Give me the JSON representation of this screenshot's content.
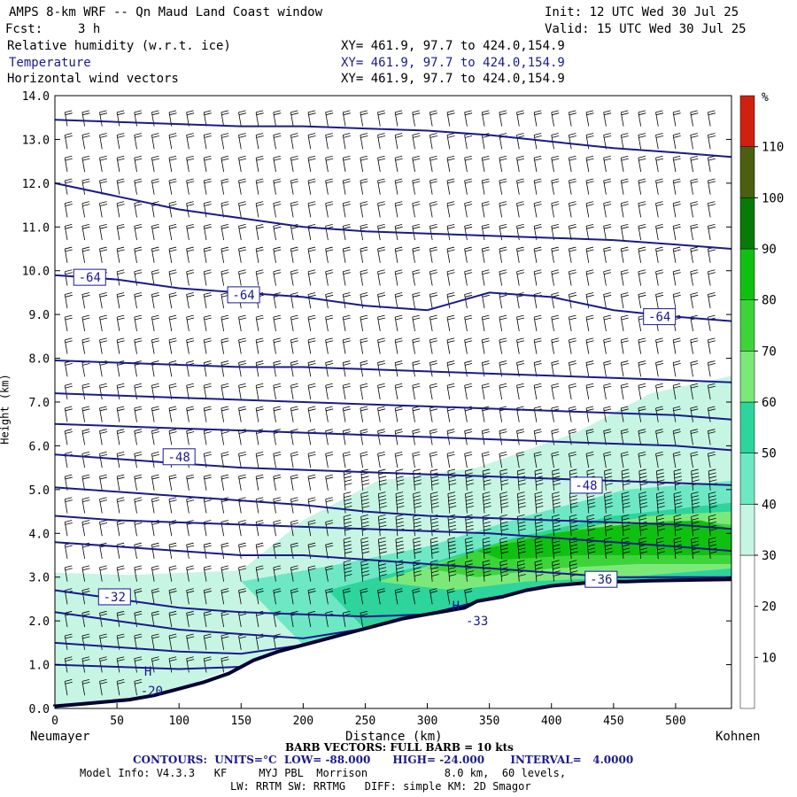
{
  "header": {
    "title": "AMPS 8-km WRF -- Qn Maud Land Coast window",
    "init": "Init: 12 UTC Wed 30 Jul 25",
    "fcst_label": "Fcst:",
    "fcst_value": "3 h",
    "valid": "Valid: 15 UTC Wed 30 Jul 25",
    "fields": [
      {
        "name": "Relative humidity (w.r.t. ice)",
        "xy": "XY= 461.9, 97.7 to 424.0,154.9",
        "color": "#000000"
      },
      {
        "name": "Temperature",
        "xy": "XY= 461.9, 97.7 to 424.0,154.9",
        "color": "#1a1a8c"
      },
      {
        "name": "Horizontal wind vectors",
        "xy": "XY= 461.9, 97.7 to 424.0,154.9",
        "color": "#000000"
      }
    ]
  },
  "footer": {
    "barb": "BARB VECTORS: FULL BARB = 10 kts",
    "contours": "CONTOURS:  UNITS=°C  LOW= -88.000      HIGH= -24.000       INTERVAL=   4.0000",
    "model_info": "Model Info: V4.3.3   KF     MYJ PBL  Morrison            8.0 km,  60 levels,",
    "model_info2": "LW: RRTM SW: RRTMG   DIFF: simple KM: 2D Smagor"
  },
  "colors": {
    "temp_contour": "#1a1a8c",
    "terrain": "#000033",
    "barb": "#000000"
  },
  "chart_data": {
    "type": "heatmap",
    "xlabel": "Distance (km)",
    "ylabel": "Height (km)",
    "xlim": [
      0,
      545
    ],
    "ylim": [
      0,
      14
    ],
    "xticks": [
      "0",
      "50",
      "100",
      "150",
      "200",
      "250",
      "300",
      "350",
      "400",
      "450",
      "500"
    ],
    "yticks": [
      "0.0",
      "1.0",
      "2.0",
      "3.0",
      "4.0",
      "5.0",
      "6.0",
      "7.0",
      "8.0",
      "9.0",
      "10.0",
      "11.0",
      "12.0",
      "13.0",
      "14.0"
    ],
    "x_endpoints": {
      "left": "Neumayer",
      "right": "Kohnen"
    },
    "colorbar": {
      "unit": "%",
      "ticks": [
        "10",
        "20",
        "30",
        "40",
        "50",
        "60",
        "70",
        "80",
        "90",
        "100",
        "110"
      ],
      "bins": [
        {
          "from": 0,
          "to": 30,
          "color": "#ffffff"
        },
        {
          "from": 30,
          "to": 40,
          "color": "#c6f5e3"
        },
        {
          "from": 40,
          "to": 50,
          "color": "#6ee8c4"
        },
        {
          "from": 50,
          "to": 60,
          "color": "#2dd49c"
        },
        {
          "from": 60,
          "to": 70,
          "color": "#7de87a"
        },
        {
          "from": 70,
          "to": 80,
          "color": "#3dd43a"
        },
        {
          "from": 80,
          "to": 90,
          "color": "#10c010"
        },
        {
          "from": 90,
          "to": 100,
          "color": "#087a08"
        },
        {
          "from": 100,
          "to": 110,
          "color": "#4a6010"
        },
        {
          "from": 110,
          "to": 120,
          "color": "#d02010"
        }
      ]
    },
    "terrain": {
      "x": [
        0,
        20,
        40,
        60,
        80,
        100,
        120,
        140,
        160,
        180,
        200,
        220,
        240,
        260,
        280,
        300,
        320,
        330,
        340,
        360,
        380,
        400,
        420,
        440,
        460,
        480,
        500,
        520,
        545
      ],
      "y": [
        0.05,
        0.1,
        0.15,
        0.2,
        0.3,
        0.45,
        0.6,
        0.8,
        1.1,
        1.3,
        1.45,
        1.6,
        1.75,
        1.9,
        2.05,
        2.15,
        2.25,
        2.3,
        2.45,
        2.55,
        2.7,
        2.8,
        2.85,
        2.9,
        2.9,
        2.92,
        2.93,
        2.94,
        2.95
      ]
    },
    "rh_regions": [
      {
        "bin": 30,
        "points": [
          [
            0,
            3.1
          ],
          [
            60,
            3.05
          ],
          [
            150,
            3.15
          ],
          [
            200,
            4.3
          ],
          [
            260,
            5.2
          ],
          [
            340,
            5.5
          ],
          [
            420,
            6.3
          ],
          [
            480,
            7.2
          ],
          [
            545,
            7.6
          ],
          [
            545,
            2.95
          ],
          [
            440,
            2.9
          ],
          [
            340,
            2.45
          ],
          [
            300,
            2.15
          ],
          [
            240,
            1.75
          ],
          [
            160,
            1.1
          ],
          [
            100,
            0.45
          ],
          [
            60,
            0.2
          ],
          [
            0,
            0.05
          ]
        ]
      },
      {
        "bin": 40,
        "points": [
          [
            150,
            2.9
          ],
          [
            230,
            3.3
          ],
          [
            300,
            3.7
          ],
          [
            380,
            4.4
          ],
          [
            460,
            5.0
          ],
          [
            545,
            5.2
          ],
          [
            545,
            2.95
          ],
          [
            440,
            2.9
          ],
          [
            340,
            2.45
          ],
          [
            300,
            2.15
          ],
          [
            240,
            1.75
          ],
          [
            200,
            1.45
          ]
        ]
      },
      {
        "bin": 50,
        "points": [
          [
            220,
            2.7
          ],
          [
            300,
            3.3
          ],
          [
            370,
            3.9
          ],
          [
            450,
            4.4
          ],
          [
            545,
            4.7
          ],
          [
            545,
            2.95
          ],
          [
            440,
            2.9
          ],
          [
            340,
            2.45
          ],
          [
            300,
            2.15
          ],
          [
            250,
            1.8
          ]
        ]
      },
      {
        "bin": 60,
        "points": [
          [
            260,
            2.9
          ],
          [
            330,
            3.5
          ],
          [
            400,
            4.0
          ],
          [
            480,
            4.4
          ],
          [
            545,
            4.5
          ],
          [
            545,
            3.2
          ],
          [
            460,
            3.0
          ],
          [
            380,
            2.9
          ],
          [
            320,
            2.7
          ]
        ]
      },
      {
        "bin": 70,
        "points": [
          [
            300,
            3.2
          ],
          [
            360,
            3.8
          ],
          [
            420,
            4.1
          ],
          [
            500,
            4.3
          ],
          [
            545,
            4.2
          ],
          [
            545,
            3.3
          ],
          [
            470,
            3.3
          ],
          [
            400,
            3.2
          ],
          [
            340,
            3.0
          ]
        ]
      },
      {
        "bin": 80,
        "points": [
          [
            340,
            3.6
          ],
          [
            400,
            4.0
          ],
          [
            460,
            4.2
          ],
          [
            520,
            4.3
          ],
          [
            545,
            4.1
          ],
          [
            545,
            3.5
          ],
          [
            480,
            3.5
          ],
          [
            420,
            3.5
          ],
          [
            360,
            3.4
          ]
        ]
      }
    ],
    "temperature_contours": [
      {
        "y": [
          3.8,
          3.7,
          3.6,
          3.5,
          3.5,
          3.4,
          3.3,
          3.2,
          3.1,
          3.0,
          3.0,
          3.0
        ]
      },
      {
        "y": [
          4.4,
          4.3,
          4.25,
          4.2,
          4.15,
          4.1,
          4.05,
          4.0,
          3.9,
          3.8,
          3.7,
          3.6
        ]
      },
      {
        "y": [
          5.05,
          4.95,
          4.85,
          4.75,
          4.65,
          4.5,
          4.4,
          4.35,
          4.3,
          4.25,
          4.2,
          4.1
        ]
      },
      {
        "y": [
          5.8,
          5.7,
          5.6,
          5.5,
          5.45,
          5.4,
          5.35,
          5.3,
          5.25,
          5.2,
          5.15,
          5.1
        ]
      },
      {
        "y": [
          6.5,
          6.45,
          6.4,
          6.35,
          6.3,
          6.25,
          6.2,
          6.15,
          6.1,
          6.05,
          6.0,
          5.9
        ]
      },
      {
        "y": [
          7.2,
          7.15,
          7.1,
          7.05,
          7.0,
          6.95,
          6.9,
          6.85,
          6.8,
          6.75,
          6.7,
          6.6
        ]
      },
      {
        "y": [
          7.95,
          7.9,
          7.85,
          7.8,
          7.8,
          7.75,
          7.7,
          7.65,
          7.6,
          7.55,
          7.5,
          7.45
        ]
      },
      {
        "y": [
          9.9,
          9.8,
          9.6,
          9.5,
          9.4,
          9.2,
          9.1,
          9.5,
          9.4,
          9.1,
          8.95,
          8.85
        ]
      },
      {
        "y": [
          12.0,
          11.7,
          11.4,
          11.2,
          11.0,
          10.9,
          10.85,
          10.8,
          10.75,
          10.7,
          10.6,
          10.5
        ]
      },
      {
        "y": [
          13.45,
          13.4,
          13.35,
          13.3,
          13.3,
          13.25,
          13.2,
          13.1,
          12.95,
          12.8,
          12.7,
          12.6
        ]
      }
    ],
    "temperature_contour_x": [
      0,
      50,
      100,
      150,
      200,
      250,
      300,
      350,
      400,
      450,
      500,
      545
    ],
    "low_contours": [
      {
        "y": [
          2.7,
          2.5,
          2.3,
          2.2,
          2.15,
          2.1,
          2.05,
          2.3,
          2.6,
          2.75,
          2.85,
          2.9
        ]
      },
      {
        "y": [
          2.2,
          2.0,
          1.8,
          1.7,
          1.6,
          1.55,
          1.6,
          2.0,
          2.55,
          2.75,
          2.85,
          2.9
        ]
      },
      {
        "y": [
          1.5,
          1.4,
          1.3,
          1.25,
          1.3,
          1.4,
          1.6,
          2.0,
          2.5,
          2.75,
          2.85,
          2.9
        ]
      },
      {
        "y": [
          1.0,
          0.95,
          0.9,
          0.85,
          1.1,
          1.35,
          1.6,
          2.0,
          2.5,
          2.75,
          2.85,
          2.9
        ]
      }
    ],
    "contour_labels": [
      {
        "text": "-64",
        "x": 28,
        "y": 9.85
      },
      {
        "text": "-64",
        "x": 152,
        "y": 9.45
      },
      {
        "text": "-64",
        "x": 487,
        "y": 8.95
      },
      {
        "text": "-48",
        "x": 100,
        "y": 5.75
      },
      {
        "text": "-48",
        "x": 428,
        "y": 5.1
      },
      {
        "text": "-32",
        "x": 48,
        "y": 2.55
      },
      {
        "text": "-36",
        "x": 440,
        "y": 2.95
      }
    ],
    "point_labels": [
      {
        "text": "H",
        "x": 75,
        "y": 0.75
      },
      {
        "text": "-20",
        "x": 78,
        "y": 0.3
      },
      {
        "text": "H",
        "x": 323,
        "y": 2.25
      },
      {
        "text": "-33",
        "x": 340,
        "y": 1.9
      }
    ]
  }
}
